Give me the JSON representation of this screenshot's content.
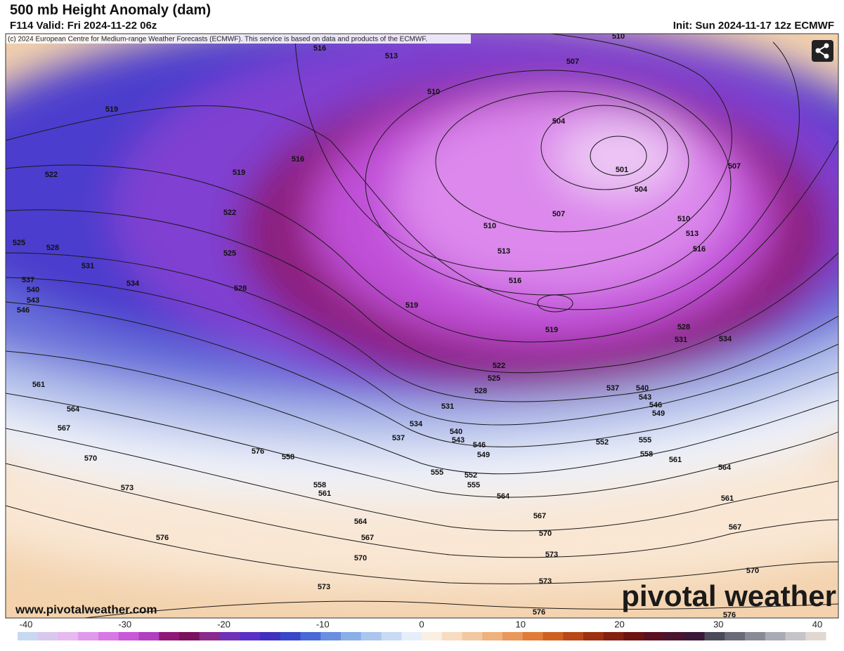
{
  "header": {
    "title": "500 mb Height Anomaly (dam)",
    "valid": "F114 Valid: Fri 2024-11-22 06z",
    "init": "Init: Sun 2024-11-17 12z ECMWF"
  },
  "map": {
    "copyright": "(c) 2024 European Centre for Medium-range Weather Forecasts (ECMWF). This service is based on data and products of the ECMWF.",
    "contour_labels": [
      510,
      516,
      513,
      507,
      510,
      519,
      504,
      516,
      519,
      522,
      501,
      504,
      507,
      507,
      510,
      510,
      513,
      522,
      513,
      516,
      525,
      528,
      525,
      531,
      534,
      528,
      516,
      537,
      540,
      543,
      546,
      519,
      519,
      528,
      531,
      534,
      522,
      525,
      528,
      537,
      540,
      543,
      546,
      549,
      531,
      534,
      537,
      540,
      543,
      546,
      549,
      552,
      555,
      558,
      561,
      564,
      561,
      564,
      567,
      570,
      573,
      576,
      558,
      555,
      552,
      555,
      558,
      561,
      564,
      561,
      567,
      564,
      567,
      570,
      567,
      570,
      573,
      570,
      573,
      573,
      576,
      576,
      576
    ],
    "website": "www.pivotalweather.com",
    "watermark": "pivotal weather"
  },
  "colorbar": {
    "ticks": [
      -40,
      -30,
      -20,
      -10,
      0,
      10,
      20,
      30,
      40
    ]
  }
}
